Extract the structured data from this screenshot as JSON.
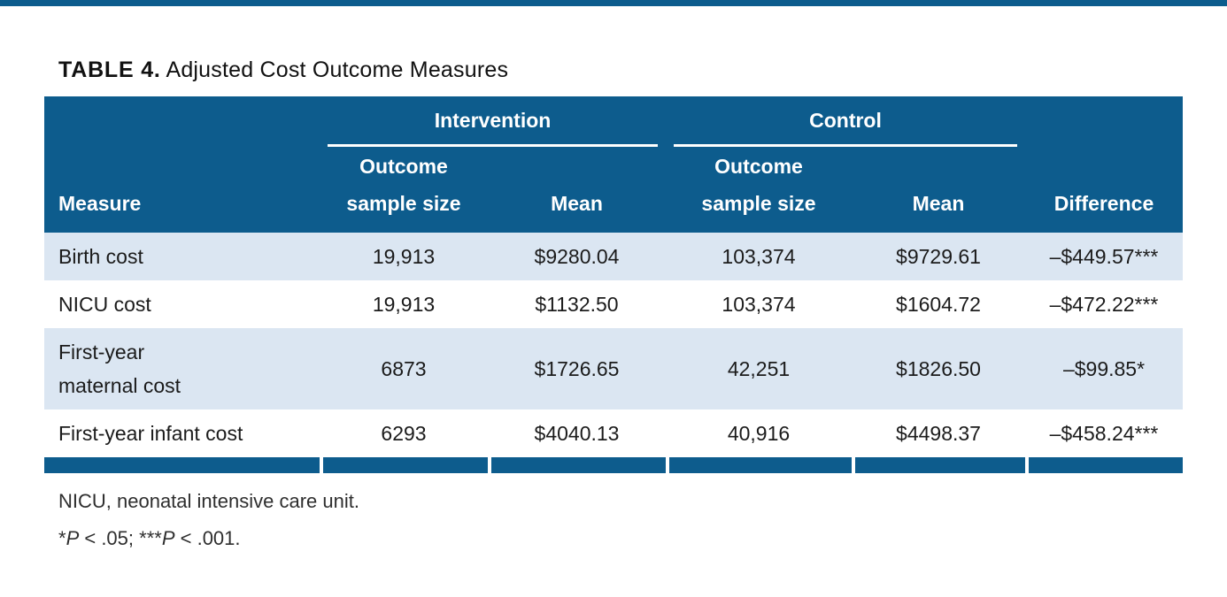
{
  "colors": {
    "accent_blue": "#0d5c8d",
    "row_alt": "#dbe6f2",
    "header_text": "#ffffff",
    "body_text": "#1b1b1b",
    "footnote_text": "#2e2e2e"
  },
  "title": {
    "label": "TABLE 4.",
    "text": " Adjusted Cost Outcome Measures"
  },
  "table": {
    "groups": [
      {
        "label": "Intervention"
      },
      {
        "label": "Control"
      }
    ],
    "columns": [
      {
        "key": "measure",
        "label": "Measure"
      },
      {
        "key": "int_n",
        "label": "Outcome\nsample size"
      },
      {
        "key": "int_mean",
        "label": "Mean"
      },
      {
        "key": "ctrl_n",
        "label": "Outcome\nsample size"
      },
      {
        "key": "ctrl_mean",
        "label": "Mean"
      },
      {
        "key": "diff",
        "label": "Difference"
      }
    ],
    "rows": [
      {
        "measure": "Birth cost",
        "int_n": "19,913",
        "int_mean": "$9280.04",
        "ctrl_n": "103,374",
        "ctrl_mean": "$9729.61",
        "diff": "–$449.57***"
      },
      {
        "measure": "NICU cost",
        "int_n": "19,913",
        "int_mean": "$1132.50",
        "ctrl_n": "103,374",
        "ctrl_mean": "$1604.72",
        "diff": "–$472.22***"
      },
      {
        "measure": "First-year\nmaternal cost",
        "int_n": "6873",
        "int_mean": "$1726.65",
        "ctrl_n": "42,251",
        "ctrl_mean": "$1826.50",
        "diff": "–$99.85*"
      },
      {
        "measure": "First-year infant cost",
        "int_n": "6293",
        "int_mean": "$4040.13",
        "ctrl_n": "40,916",
        "ctrl_mean": "$4498.37",
        "diff": "–$458.24***"
      }
    ]
  },
  "footnotes": {
    "abbreviation": "NICU, neonatal intensive care unit.",
    "significance": [
      {
        "text": "*",
        "italic": false
      },
      {
        "text": "P",
        "italic": true
      },
      {
        "text": " < .05; ***",
        "italic": false
      },
      {
        "text": "P",
        "italic": true
      },
      {
        "text": " < .001.",
        "italic": false
      }
    ]
  }
}
